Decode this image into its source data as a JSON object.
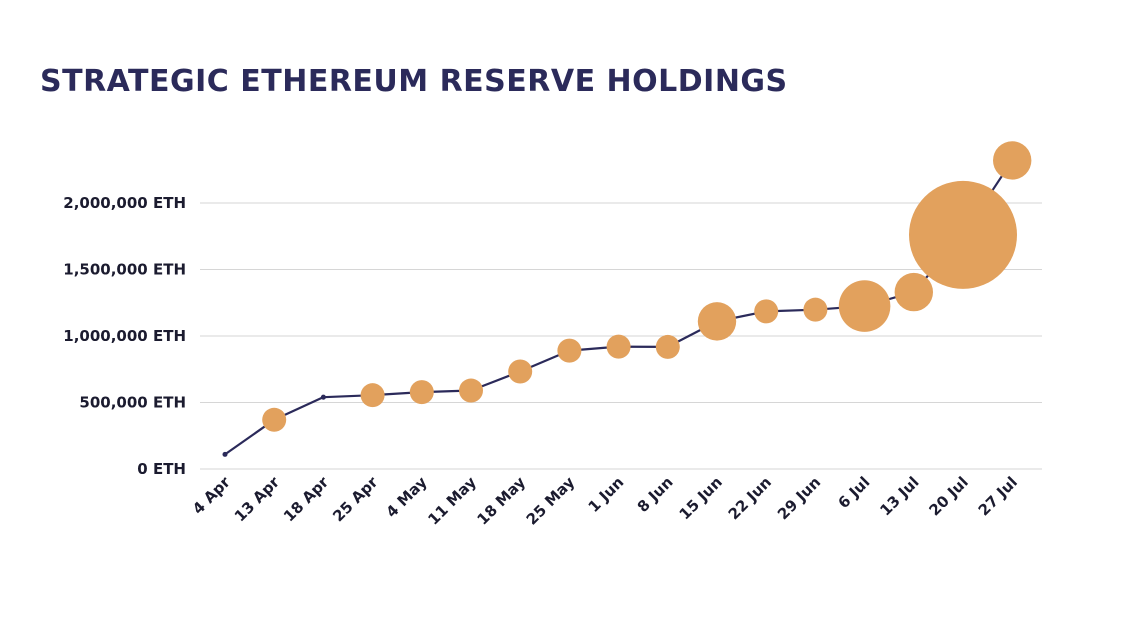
{
  "chart_data": {
    "type": "line",
    "title": "STRATEGIC ETHEREUM RESERVE HOLDINGS",
    "xlabel": "",
    "ylabel": "",
    "categories": [
      "4 Apr",
      "13 Apr",
      "18 Apr",
      "25 Apr",
      "4 May",
      "11 May",
      "18 May",
      "25 May",
      "1 Jun",
      "8 Jun",
      "15 Jun",
      "22 Jun",
      "29 Jun",
      "6 Jul",
      "13 Jul",
      "20 Jul",
      "27 Jul"
    ],
    "series": [
      {
        "values": [
          110000,
          370000,
          540000,
          555000,
          578000,
          590000,
          733000,
          890000,
          920000,
          918000,
          1110000,
          1185000,
          1198000,
          1225000,
          1330000,
          1760000,
          2320000
        ],
        "bubble_size": [
          0.6,
          2,
          0.6,
          2,
          2,
          2,
          2,
          2,
          2,
          2,
          3.2,
          2,
          2,
          4.3,
          3.2,
          9,
          3.2
        ]
      }
    ],
    "y_ticks": [
      "0 ETH",
      "500,000 ETH",
      "1,000,000 ETH",
      "1,500,000 ETH",
      "2,000,000 ETH"
    ],
    "ylim": [
      0,
      2000000
    ],
    "grid": true,
    "colors": {
      "line": "#2b2a5a",
      "marker": "#e2a15d",
      "grid": "#d6d6d6",
      "title": "#2b2a5a"
    }
  }
}
